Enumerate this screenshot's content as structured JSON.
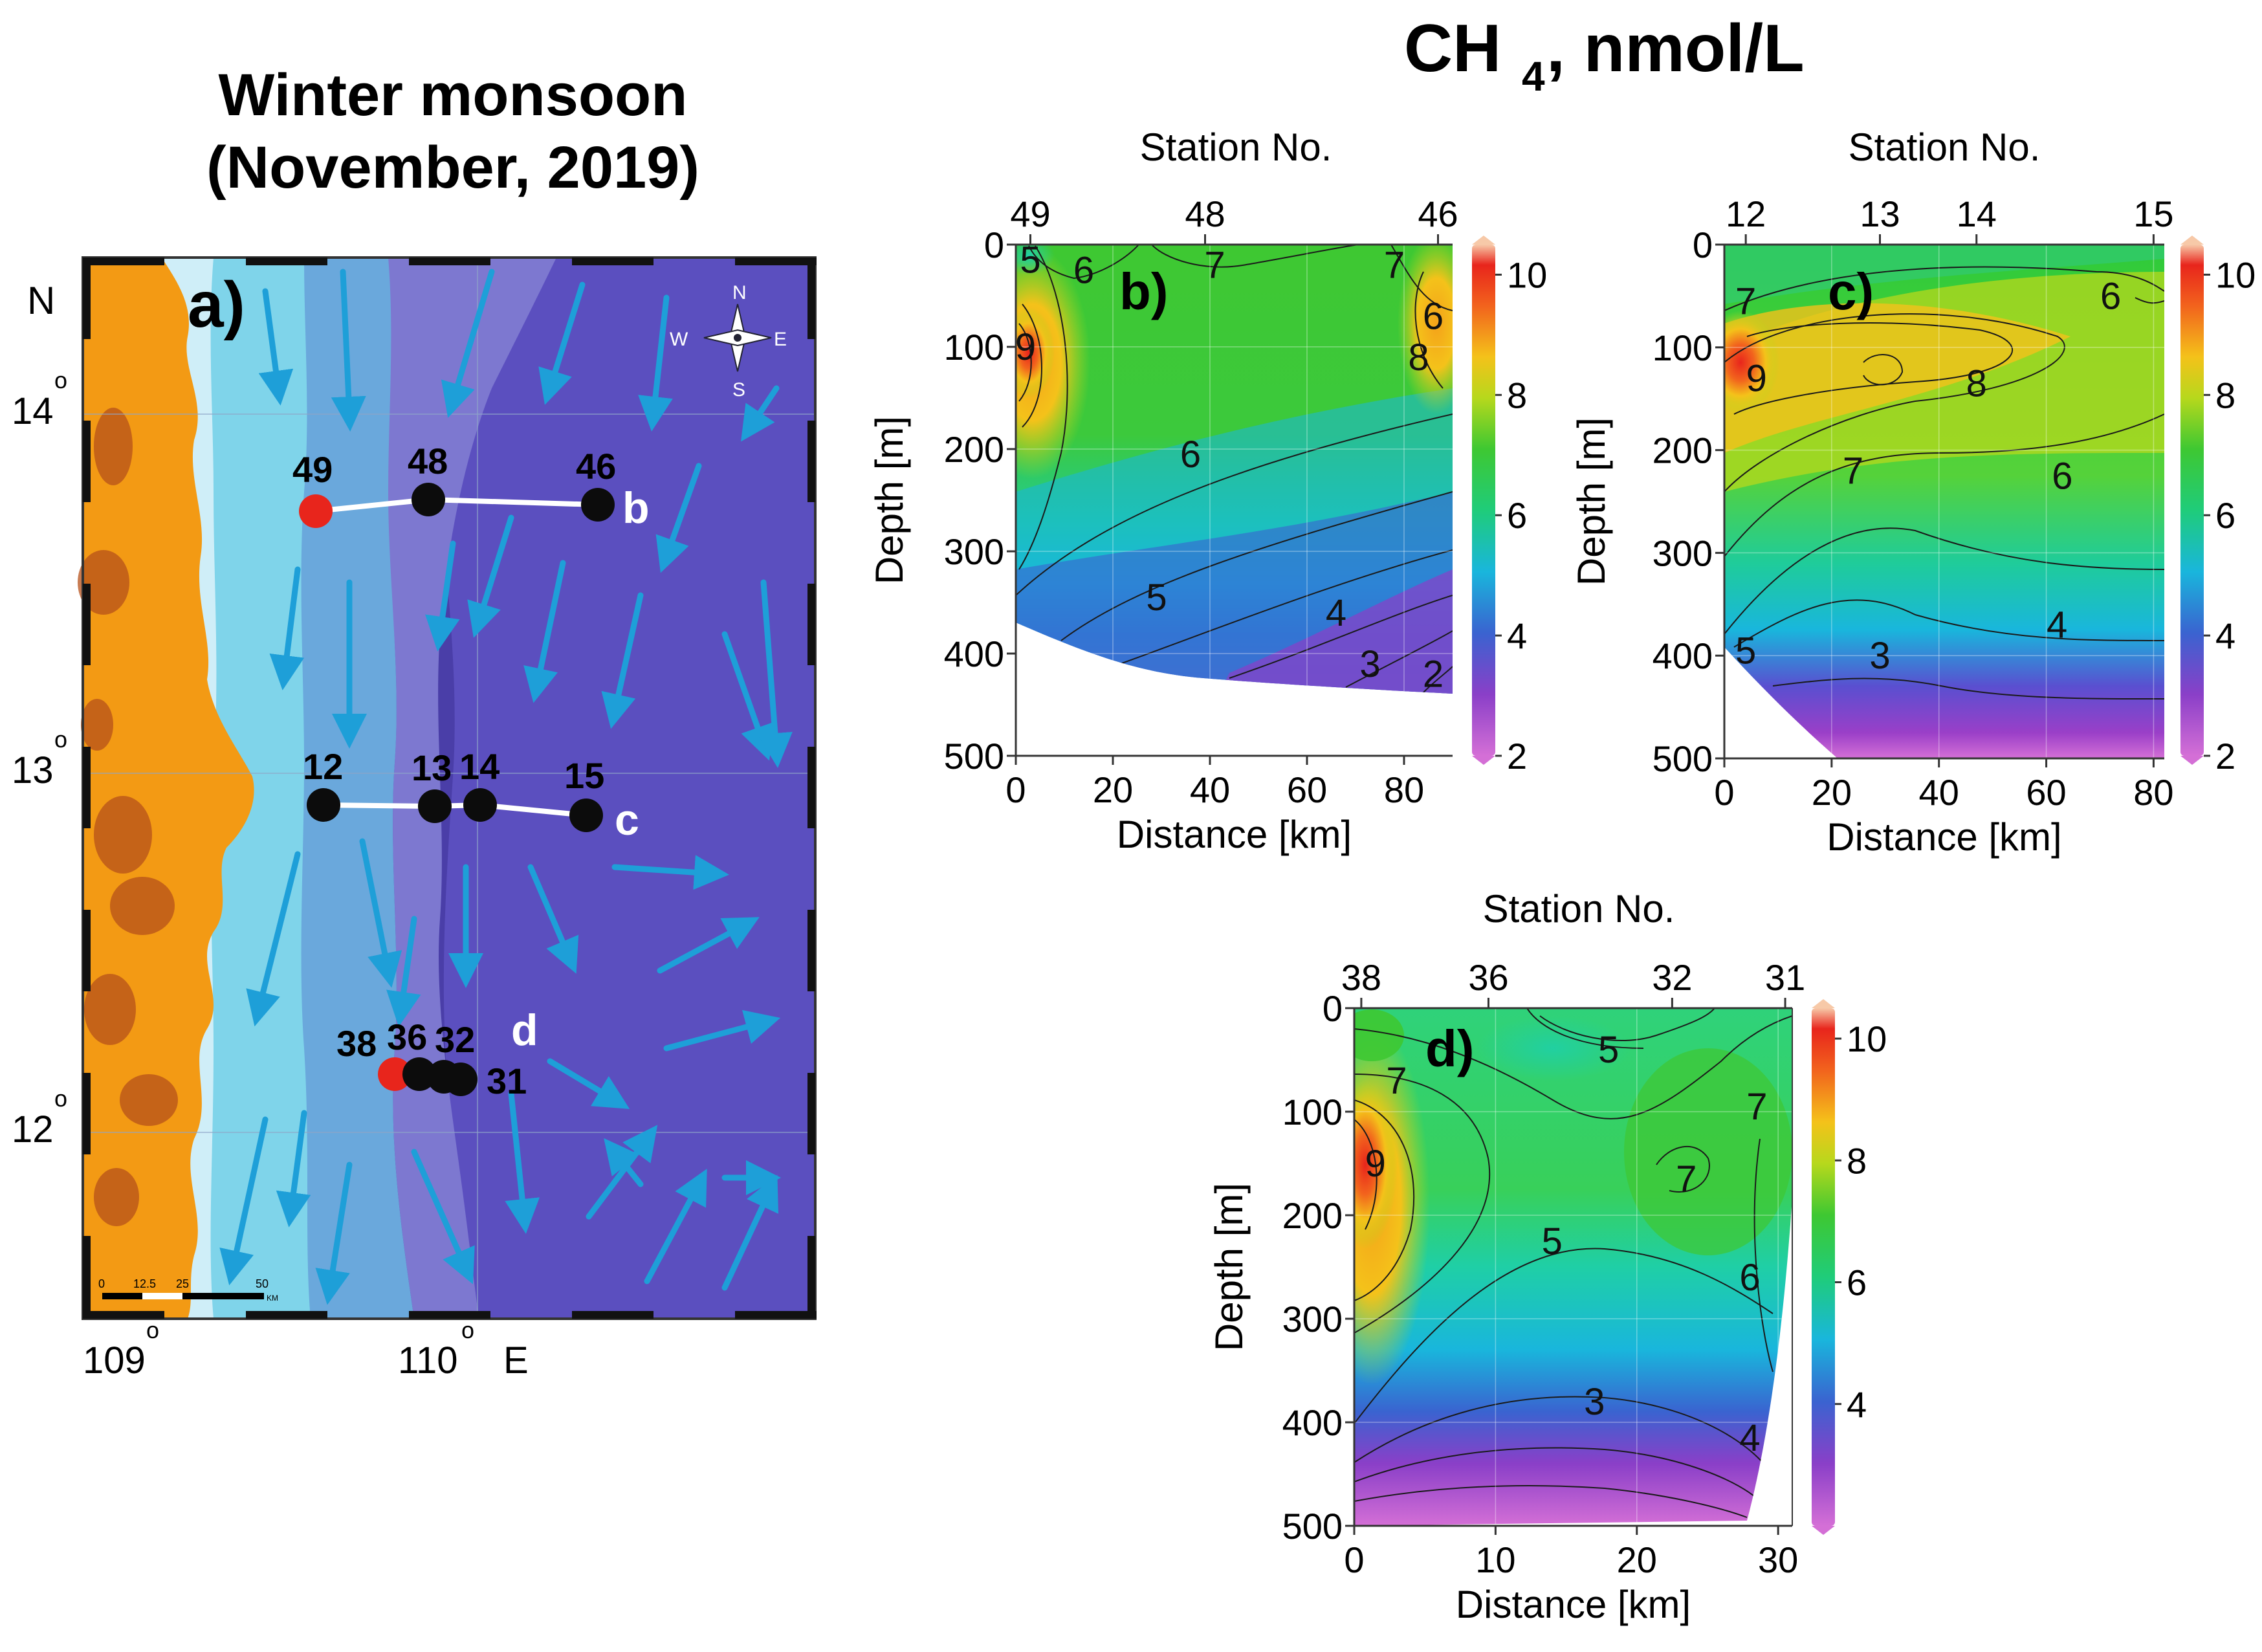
{
  "figure": {
    "main_title": "CH",
    "main_title_sub": "4",
    "main_title_unit": ", nmol/L",
    "map_title_line1": "Winter monsoon",
    "map_title_line2": "(November, 2019)"
  },
  "colors": {
    "land": "#f39a14",
    "land_dark": "#b5501a",
    "shelf_light": "#cfeef8",
    "shelf": "#7fd4ea",
    "slope": "#6aa8dc",
    "deep1": "#7d78d0",
    "deep2": "#5b4fbf",
    "deep3": "#4a3ea8",
    "arrow": "#1e9fd8",
    "station_black": "#0c0c0c",
    "station_red": "#e8251c"
  },
  "map": {
    "panel_label": "a)",
    "north_label": "N",
    "east_label": "E",
    "lat_labels": [
      "14",
      "13",
      "12"
    ],
    "lon_labels": [
      "109",
      "110"
    ],
    "degree_mark": "o",
    "compass": {
      "n": "N",
      "s": "S",
      "e": "E",
      "w": "W"
    },
    "scale_labels": [
      "0",
      "12.5",
      "25",
      "50"
    ],
    "scale_unit": "KM",
    "transects": [
      {
        "label": "b",
        "stations": [
          "49",
          "48",
          "46"
        ]
      },
      {
        "label": "c",
        "stations": [
          "12",
          "13",
          "14",
          "15"
        ]
      },
      {
        "label": "d",
        "stations": [
          "38",
          "36",
          "32",
          "31"
        ]
      }
    ],
    "red_stations": [
      "49",
      "38"
    ]
  },
  "chart_data": [
    {
      "type": "heatmap",
      "panel": "b)",
      "title": "Station No.",
      "xlabel": "Distance [km]",
      "ylabel": "Depth [m]",
      "xlim": [
        0,
        90
      ],
      "ylim": [
        500,
        0
      ],
      "x_ticks": [
        0,
        20,
        40,
        60,
        80
      ],
      "y_ticks": [
        0,
        100,
        200,
        300,
        400,
        500
      ],
      "stations": [
        {
          "name": "49",
          "x": 3
        },
        {
          "name": "48",
          "x": 39
        },
        {
          "name": "46",
          "x": 87
        }
      ],
      "colorbar": {
        "min": 2,
        "max": 10.5,
        "ticks": [
          2,
          4,
          6,
          8,
          10
        ]
      },
      "contour_labels": [
        {
          "value": "5",
          "x": 3,
          "y": 15
        },
        {
          "value": "6",
          "x": 14,
          "y": 25
        },
        {
          "value": "7",
          "x": 41,
          "y": 20
        },
        {
          "value": "7",
          "x": 78,
          "y": 20
        },
        {
          "value": "9",
          "x": 2,
          "y": 100
        },
        {
          "value": "6",
          "x": 86,
          "y": 70
        },
        {
          "value": "8",
          "x": 83,
          "y": 110
        },
        {
          "value": "6",
          "x": 36,
          "y": 205
        },
        {
          "value": "5",
          "x": 29,
          "y": 345
        },
        {
          "value": "4",
          "x": 66,
          "y": 360
        },
        {
          "value": "3",
          "x": 73,
          "y": 410
        },
        {
          "value": "2",
          "x": 86,
          "y": 420
        }
      ]
    },
    {
      "type": "heatmap",
      "panel": "c)",
      "title": "Station No.",
      "xlabel": "Distance [km]",
      "ylabel": "Depth [m]",
      "xlim": [
        0,
        82
      ],
      "ylim": [
        500,
        0
      ],
      "x_ticks": [
        0,
        20,
        40,
        60,
        80
      ],
      "y_ticks": [
        0,
        100,
        200,
        300,
        400,
        500
      ],
      "stations": [
        {
          "name": "12",
          "x": 4
        },
        {
          "name": "13",
          "x": 29
        },
        {
          "name": "14",
          "x": 47
        },
        {
          "name": "15",
          "x": 80
        }
      ],
      "colorbar": {
        "min": 2,
        "max": 10.5,
        "ticks": [
          2,
          4,
          6,
          8,
          10
        ]
      },
      "contour_labels": [
        {
          "value": "7",
          "x": 4,
          "y": 55
        },
        {
          "value": "9",
          "x": 6,
          "y": 130
        },
        {
          "value": "8",
          "x": 47,
          "y": 135
        },
        {
          "value": "7",
          "x": 24,
          "y": 220
        },
        {
          "value": "6",
          "x": 63,
          "y": 225
        },
        {
          "value": "6",
          "x": 72,
          "y": 50
        },
        {
          "value": "5",
          "x": 4,
          "y": 395
        },
        {
          "value": "4",
          "x": 62,
          "y": 370
        },
        {
          "value": "3",
          "x": 29,
          "y": 400
        }
      ]
    },
    {
      "type": "heatmap",
      "panel": "d)",
      "title": "Station No.",
      "xlabel": "Distance [km]",
      "ylabel": "Depth [m]",
      "xlim": [
        0,
        31
      ],
      "ylim": [
        500,
        0
      ],
      "x_ticks": [
        0,
        10,
        20,
        30
      ],
      "y_ticks": [
        0,
        100,
        200,
        300,
        400,
        500
      ],
      "stations": [
        {
          "name": "38",
          "x": 0.5
        },
        {
          "name": "36",
          "x": 9.5
        },
        {
          "name": "32",
          "x": 22.5
        },
        {
          "name": "31",
          "x": 30.5
        }
      ],
      "colorbar": {
        "min": 2,
        "max": 10.5,
        "ticks": [
          4,
          6,
          8,
          10
        ]
      },
      "contour_labels": [
        {
          "value": "5",
          "x": 18,
          "y": 40
        },
        {
          "value": "7",
          "x": 3,
          "y": 70
        },
        {
          "value": "7",
          "x": 28.5,
          "y": 95
        },
        {
          "value": "9",
          "x": 1.5,
          "y": 150
        },
        {
          "value": "7",
          "x": 23.5,
          "y": 165
        },
        {
          "value": "5",
          "x": 14,
          "y": 225
        },
        {
          "value": "6",
          "x": 28,
          "y": 260
        },
        {
          "value": "3",
          "x": 17,
          "y": 380
        },
        {
          "value": "4",
          "x": 28,
          "y": 415
        }
      ]
    }
  ]
}
